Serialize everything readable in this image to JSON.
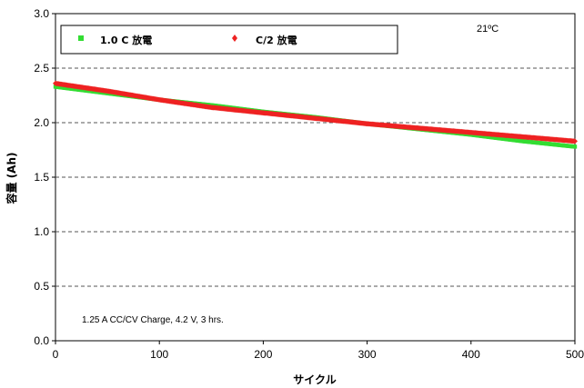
{
  "chart_data": {
    "type": "scatter",
    "xlabel": "サイクル",
    "ylabel": "容量 (Ah)",
    "xlim": [
      0,
      500
    ],
    "ylim": [
      0,
      3.0
    ],
    "x_ticks": [
      "0",
      "100",
      "200",
      "300",
      "400",
      "500"
    ],
    "y_ticks": [
      "0.0",
      "0.5",
      "1.0",
      "1.5",
      "2.0",
      "2.5",
      "3.0"
    ],
    "grid": "horizontal dashed",
    "legend_placement": "top-left",
    "series": [
      {
        "name": "1.0 C 放電",
        "color": "#33dd33",
        "marker": "square",
        "x": [
          0,
          50,
          100,
          150,
          200,
          250,
          300,
          350,
          400,
          450,
          500
        ],
        "y": [
          2.33,
          2.27,
          2.21,
          2.16,
          2.1,
          2.05,
          1.99,
          1.94,
          1.89,
          1.83,
          1.78
        ]
      },
      {
        "name": "C/2 放電",
        "color": "#ee2222",
        "marker": "diamond",
        "x": [
          0,
          50,
          100,
          150,
          200,
          250,
          300,
          350,
          400,
          450,
          500
        ],
        "y": [
          2.36,
          2.29,
          2.21,
          2.14,
          2.09,
          2.04,
          1.99,
          1.95,
          1.91,
          1.87,
          1.83
        ]
      }
    ],
    "annotations": [
      "21ºC",
      "1.25 A CC/CV Charge, 4.2 V, 3 hrs."
    ]
  }
}
